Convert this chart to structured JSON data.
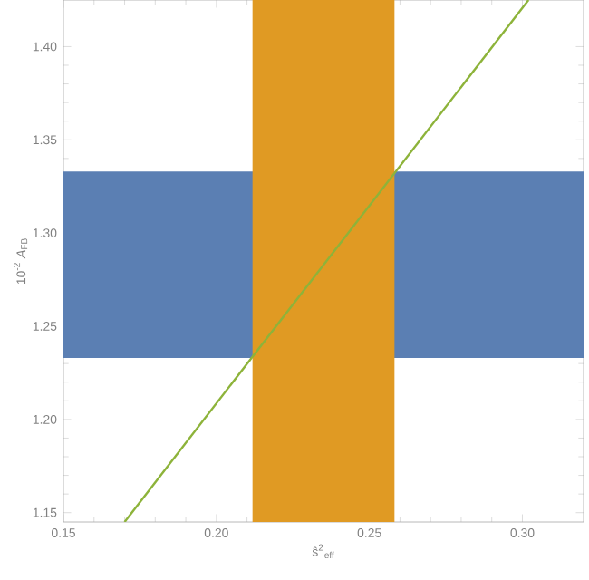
{
  "chart_data": {
    "type": "line",
    "xlabel": "ŝ$^{2}$$_{eff}$",
    "ylabel": "10$^{-2}$ *A*$_{FB}$",
    "xlim": [
      0.15,
      0.32
    ],
    "ylim": [
      1.145,
      1.425
    ],
    "xticks": [
      0.15,
      {
        "value": 0.2,
        "label": "0.20"
      },
      0.25,
      {
        "value": 0.3,
        "label": "0.30"
      }
    ],
    "yticks": [
      1.15,
      {
        "value": 1.2,
        "label": "1.20"
      },
      1.25,
      {
        "value": 1.3,
        "label": "1.30"
      },
      1.35,
      {
        "value": 1.4,
        "label": "1.40"
      }
    ],
    "bands": [
      {
        "axis": "y",
        "from": 1.233,
        "to": 1.333,
        "color": "#5b7fb3"
      },
      {
        "axis": "x",
        "from": 0.2118,
        "to": 0.2582,
        "color": "#e09a23"
      }
    ],
    "series": [
      {
        "color": "#8db33a",
        "x": [
          0.17,
          0.302
        ],
        "values": [
          1.145,
          1.425
        ]
      }
    ]
  }
}
